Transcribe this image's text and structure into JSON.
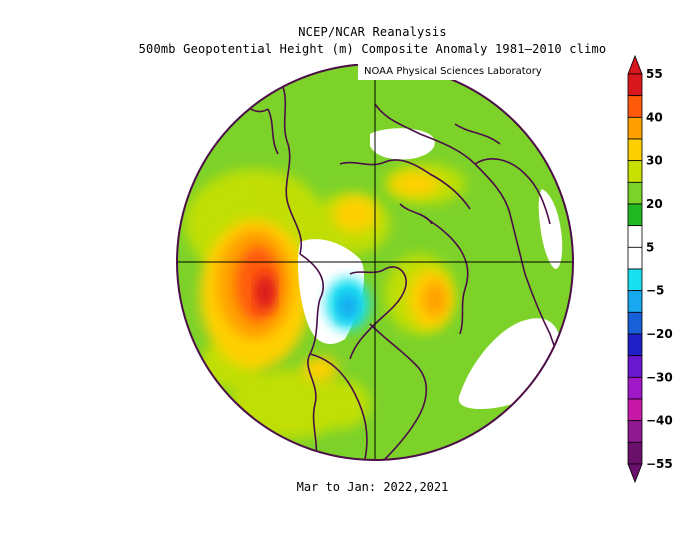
{
  "header": {
    "title_line1": "NCEP/NCAR Reanalysis",
    "title_line2": "500mb Geopotential Height (m) Composite Anomaly 1981–2010 climo",
    "credit": "NOAA Physical Sciences Laboratory"
  },
  "footer": {
    "period": "Mar to Jan: 2022,2021"
  },
  "colorbar": {
    "labels": [
      "55",
      "40",
      "30",
      "20",
      "5",
      "−5",
      "−20",
      "−30",
      "−40",
      "−55"
    ],
    "colors": [
      "#d8181c",
      "#ff5a0a",
      "#ffa000",
      "#ffd000",
      "#c8e000",
      "#7dd22a",
      "#22b822",
      "#ffffff",
      "#ffffff",
      "#18e0f0",
      "#18a8f0",
      "#1860d8",
      "#2020c8",
      "#6a18d0",
      "#a018c8",
      "#c818a8",
      "#901890",
      "#6a106a"
    ]
  },
  "colors": {
    "land_outline": "#4b0e47",
    "grid": "#000000",
    "background_anomaly": "#7dd22a"
  }
}
